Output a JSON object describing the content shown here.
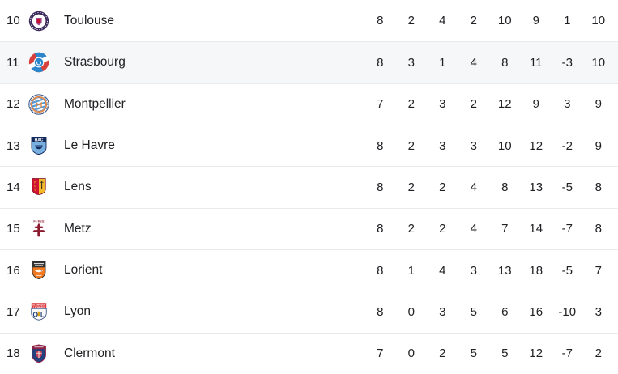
{
  "table": {
    "rows": [
      {
        "rank": "10",
        "team": "Toulouse",
        "crest": "toulouse-crest-icon",
        "highlighted": false,
        "stats": [
          "8",
          "2",
          "4",
          "2",
          "10",
          "9",
          "1",
          "10"
        ]
      },
      {
        "rank": "11",
        "team": "Strasbourg",
        "crest": "strasbourg-crest-icon",
        "highlighted": true,
        "stats": [
          "8",
          "3",
          "1",
          "4",
          "8",
          "11",
          "-3",
          "10"
        ]
      },
      {
        "rank": "12",
        "team": "Montpellier",
        "crest": "montpellier-crest-icon",
        "highlighted": false,
        "stats": [
          "7",
          "2",
          "3",
          "2",
          "12",
          "9",
          "3",
          "9"
        ]
      },
      {
        "rank": "13",
        "team": "Le Havre",
        "crest": "le-havre-crest-icon",
        "highlighted": false,
        "stats": [
          "8",
          "2",
          "3",
          "3",
          "10",
          "12",
          "-2",
          "9"
        ]
      },
      {
        "rank": "14",
        "team": "Lens",
        "crest": "lens-crest-icon",
        "highlighted": false,
        "stats": [
          "8",
          "2",
          "2",
          "4",
          "8",
          "13",
          "-5",
          "8"
        ]
      },
      {
        "rank": "15",
        "team": "Metz",
        "crest": "metz-crest-icon",
        "highlighted": false,
        "stats": [
          "8",
          "2",
          "2",
          "4",
          "7",
          "14",
          "-7",
          "8"
        ]
      },
      {
        "rank": "16",
        "team": "Lorient",
        "crest": "lorient-crest-icon",
        "highlighted": false,
        "stats": [
          "8",
          "1",
          "4",
          "3",
          "13",
          "18",
          "-5",
          "7"
        ]
      },
      {
        "rank": "17",
        "team": "Lyon",
        "crest": "lyon-crest-icon",
        "highlighted": false,
        "stats": [
          "8",
          "0",
          "3",
          "5",
          "6",
          "16",
          "-10",
          "3"
        ]
      },
      {
        "rank": "18",
        "team": "Clermont",
        "crest": "clermont-crest-icon",
        "highlighted": false,
        "stats": [
          "7",
          "0",
          "2",
          "5",
          "5",
          "12",
          "-7",
          "2"
        ]
      }
    ],
    "crest_texts": {
      "le_havre": "HAC",
      "lens": "RCL",
      "metz": "Fc Metz",
      "lyon_banner_line1": "OLYMPIQUE",
      "lyon_banner_line2": "LYONNAIS",
      "lyon_monogram": "OL"
    },
    "colors": {
      "background": "#ffffff",
      "row_highlight": "#f6f7f8",
      "divider": "#e9eaeb",
      "text": "#202124"
    }
  }
}
